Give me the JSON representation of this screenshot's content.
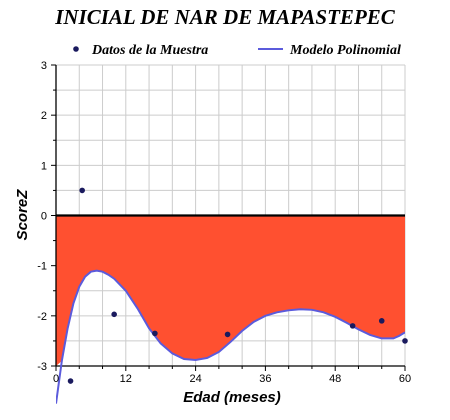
{
  "chart_data": {
    "type": "scatter",
    "title": "INICIAL DE NAR DE MAPASTEPEC",
    "xlabel": "Edad (meses)",
    "ylabel": "ScoreZ",
    "xlim": [
      0,
      60
    ],
    "ylim": [
      -3,
      3
    ],
    "x_ticks": [
      "0",
      "12",
      "24",
      "36",
      "48",
      "60"
    ],
    "y_ticks": [
      "3",
      "2",
      "1",
      "0",
      "-1",
      "-2",
      "-3"
    ],
    "grid": true,
    "legend_position": "top",
    "series": [
      {
        "name": "Datos de la Muestra",
        "kind": "scatter",
        "color": "#1a1a5e",
        "x": [
          2.5,
          4.5,
          10,
          17,
          29.5,
          51,
          56,
          60
        ],
        "y": [
          -3.3,
          0.5,
          -1.97,
          -2.35,
          -2.37,
          -2.2,
          -2.1,
          -2.5
        ]
      },
      {
        "name": "Modelo Polinomial",
        "kind": "line",
        "color": "#5b5bdc",
        "x": [
          0,
          1,
          2,
          3,
          4,
          5,
          6,
          7,
          8,
          9,
          10,
          12,
          14,
          16,
          18,
          20,
          22,
          24,
          26,
          28,
          30,
          32,
          34,
          36,
          38,
          40,
          42,
          44,
          46,
          48,
          50,
          52,
          54,
          56,
          58,
          59,
          60
        ],
        "y": [
          -3.75,
          -2.9,
          -2.25,
          -1.75,
          -1.42,
          -1.22,
          -1.12,
          -1.1,
          -1.12,
          -1.18,
          -1.26,
          -1.5,
          -1.85,
          -2.25,
          -2.55,
          -2.75,
          -2.86,
          -2.88,
          -2.84,
          -2.72,
          -2.52,
          -2.3,
          -2.12,
          -2.0,
          -1.93,
          -1.89,
          -1.87,
          -1.88,
          -1.93,
          -2.02,
          -2.14,
          -2.27,
          -2.38,
          -2.45,
          -2.45,
          -2.4,
          -2.33
        ]
      }
    ],
    "fill_color": "#ff5030"
  }
}
